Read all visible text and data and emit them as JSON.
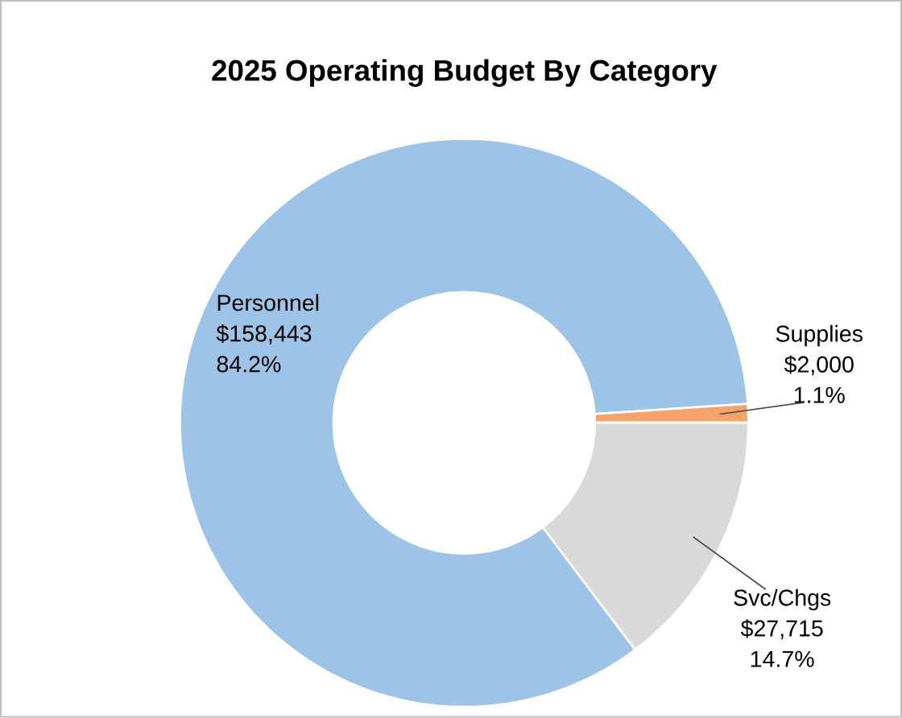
{
  "chart_data": {
    "type": "donut",
    "title": "2025 Operating Budget By Category",
    "categories": [
      "Personnel",
      "Supplies",
      "Svc/Chgs"
    ],
    "values": [
      158443,
      2000,
      27715
    ],
    "colors": [
      "#9dc3e6",
      "#f4a46a",
      "#d9d9d9"
    ],
    "value_labels": [
      "$158,443",
      "$2,000",
      "$27,715"
    ],
    "annotations": [
      "84.2%",
      "1.1%",
      "14.7%"
    ]
  }
}
